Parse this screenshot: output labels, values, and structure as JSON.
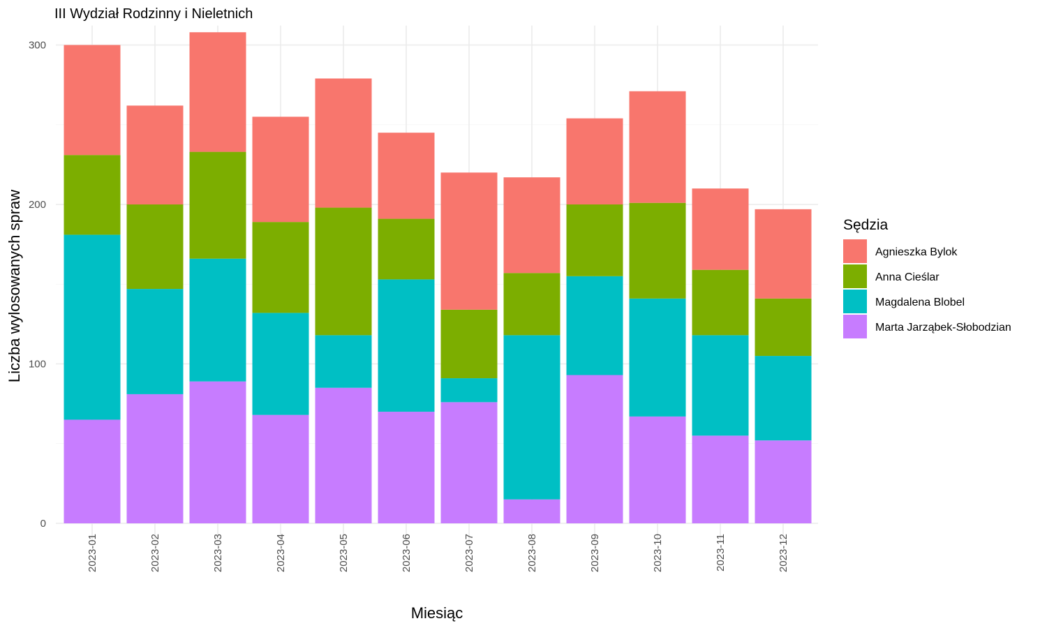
{
  "chart_data": {
    "type": "bar",
    "stacked": true,
    "title": "III Wydział Rodzinny i Nieletnich",
    "xlabel": "Miesiąc",
    "ylabel": "Liczba wylosowanych spraw",
    "ylim": [
      0,
      310
    ],
    "yticks": [
      0,
      100,
      200,
      300
    ],
    "grid": true,
    "legend_title": "Sędzia",
    "legend_position": "right",
    "categories": [
      "2023-01",
      "2023-02",
      "2023-03",
      "2023-04",
      "2023-05",
      "2023-06",
      "2023-07",
      "2023-08",
      "2023-09",
      "2023-10",
      "2023-11",
      "2023-12"
    ],
    "series": [
      {
        "name": "Marta Jarząbek-Słobodzian",
        "color": "#C77CFF",
        "values": [
          65,
          81,
          89,
          68,
          85,
          70,
          76,
          15,
          93,
          67,
          55,
          52
        ]
      },
      {
        "name": "Magdalena Blobel",
        "color": "#00BFC4",
        "values": [
          116,
          66,
          77,
          64,
          33,
          83,
          15,
          103,
          62,
          74,
          63,
          53
        ]
      },
      {
        "name": "Anna Cieślar",
        "color": "#7CAE00",
        "values": [
          50,
          53,
          67,
          57,
          80,
          38,
          43,
          39,
          45,
          60,
          41,
          36
        ]
      },
      {
        "name": "Agnieszka Bylok",
        "color": "#F8766D",
        "values": [
          69,
          62,
          75,
          66,
          81,
          54,
          86,
          60,
          54,
          70,
          51,
          56
        ]
      }
    ],
    "legend_order": [
      "Agnieszka Bylok",
      "Anna Cieślar",
      "Magdalena Blobel",
      "Marta Jarząbek-Słobodzian"
    ]
  }
}
